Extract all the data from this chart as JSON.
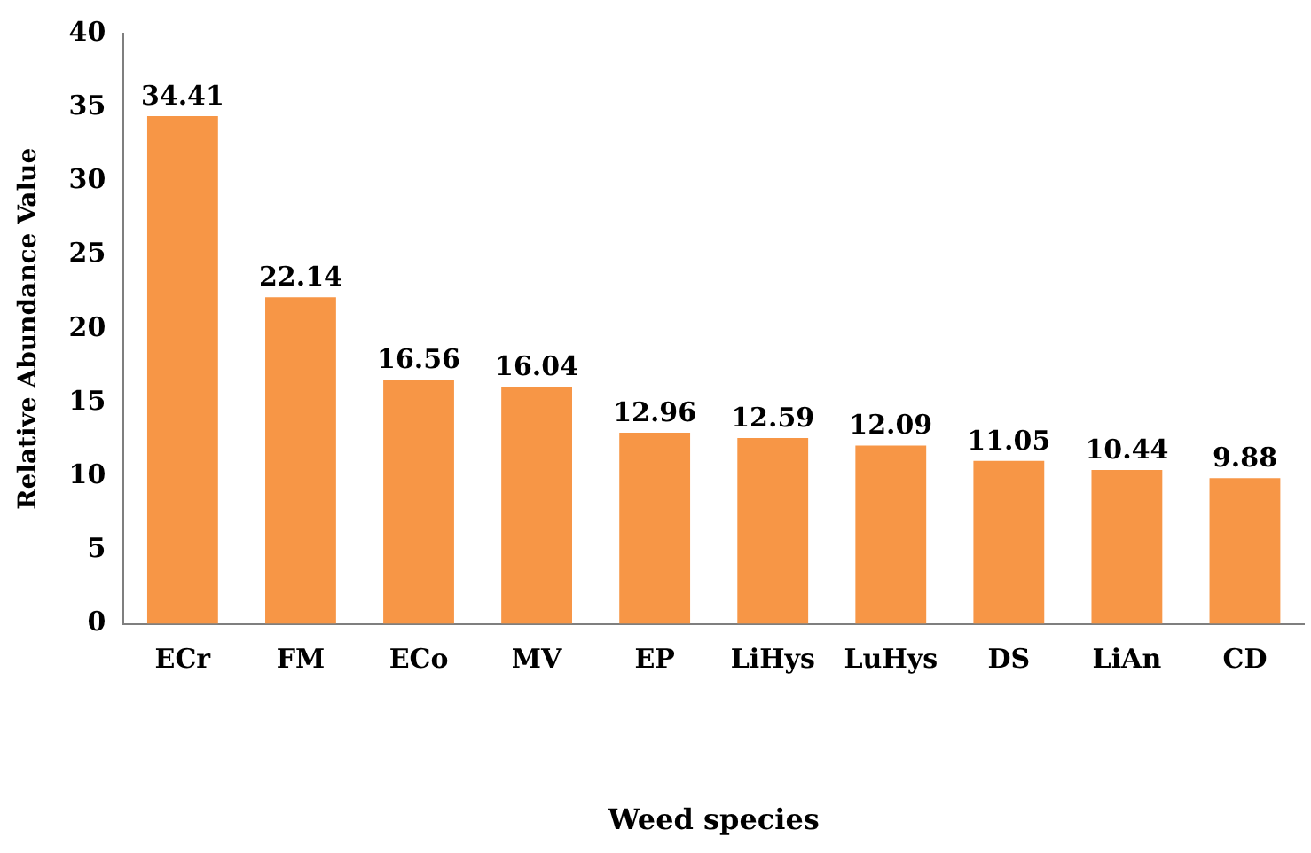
{
  "chart_data": {
    "type": "bar",
    "xlabel": "Weed species",
    "ylabel": "Relative Abundance Value",
    "categories": [
      "ECr",
      "FM",
      "ECo",
      "MV",
      "EP",
      "LiHys",
      "LuHys",
      "DS",
      "LiAn",
      "CD"
    ],
    "values": [
      34.41,
      22.14,
      16.56,
      16.04,
      12.96,
      12.59,
      12.09,
      11.05,
      10.44,
      9.88
    ],
    "color": "#f79646",
    "ylim": [
      0,
      40
    ],
    "yticks": [
      0,
      5,
      10,
      15,
      20,
      25,
      30,
      35,
      40
    ],
    "grid": false,
    "legend": false,
    "data_labels": true
  }
}
